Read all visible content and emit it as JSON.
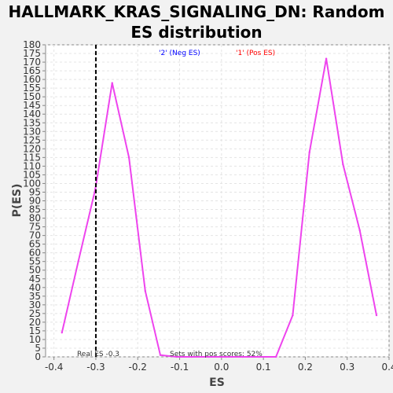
{
  "chart_data": {
    "type": "line",
    "title": "HALLMARK_KRAS_SIGNALING_DN: Random ES distribution",
    "xlabel": "ES",
    "ylabel": "P(ES)",
    "xlim": [
      -0.42,
      0.4
    ],
    "ylim": [
      0,
      180
    ],
    "x_ticks": [
      "-0.4",
      "-0.3",
      "-0.2",
      "-0.1",
      "0.0",
      "0.1",
      "0.2",
      "0.3",
      "0.4"
    ],
    "y_ticks": [
      "0",
      "5",
      "10",
      "15",
      "20",
      "25",
      "30",
      "35",
      "40",
      "45",
      "50",
      "55",
      "60",
      "65",
      "70",
      "75",
      "80",
      "85",
      "90",
      "95",
      "100",
      "105",
      "110",
      "115",
      "120",
      "125",
      "130",
      "135",
      "140",
      "145",
      "150",
      "155",
      "160",
      "165",
      "170",
      "175",
      "180"
    ],
    "grid": true,
    "series": [
      {
        "color": "#ee44ee",
        "x": [
          -0.381,
          -0.342,
          -0.301,
          -0.261,
          -0.221,
          -0.182,
          -0.146,
          -0.107,
          -0.071,
          -0.03,
          0.01,
          0.05,
          0.09,
          0.13,
          0.17,
          0.21,
          0.25,
          0.29,
          0.33,
          0.37
        ],
        "y": [
          14,
          55,
          97,
          158,
          115,
          38,
          1,
          0,
          0,
          0,
          0,
          0,
          0,
          0,
          24,
          118,
          172,
          111,
          73,
          24
        ]
      }
    ],
    "reference_line": {
      "x": -0.3,
      "label": "Real ES -0.3",
      "color": "#000000"
    },
    "legend": [
      {
        "text": "'2' (Neg ES)",
        "color": "#0000ff"
      },
      {
        "text": "'1' (Pos ES)",
        "color": "#ff0000"
      }
    ],
    "annotation": "Sets with pos scores: 52%"
  }
}
